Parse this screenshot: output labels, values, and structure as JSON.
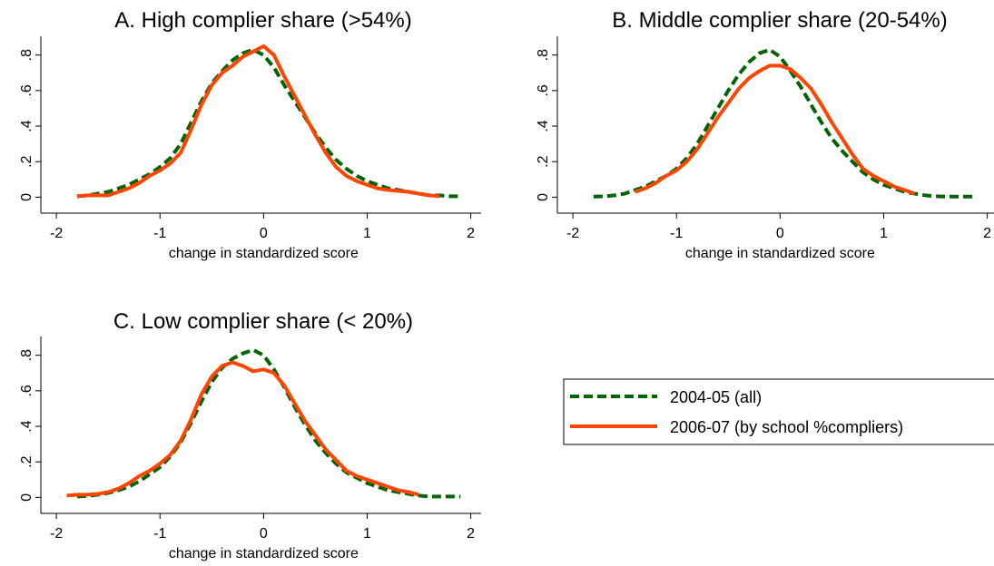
{
  "chart_data": [
    {
      "type": "line",
      "title": "A. High complier share (>54%)",
      "x_label": "change in standardized score",
      "xlim": [
        -2.15,
        2.1
      ],
      "ylim": [
        -0.09,
        0.88
      ],
      "xticks": [
        -2,
        -1,
        0,
        1,
        2
      ],
      "yticks": [
        0,
        {
          "value": 0.2,
          "label": ".2"
        },
        {
          "value": 0.4,
          "label": ".4"
        },
        {
          "value": 0.6,
          "label": ".6"
        },
        {
          "value": 0.8,
          "label": ".8"
        }
      ],
      "x": [
        -1.9,
        -1.8,
        -1.7,
        -1.6,
        -1.5,
        -1.4,
        -1.3,
        -1.2,
        -1.1,
        -1.0,
        -0.9,
        -0.8,
        -0.7,
        -0.6,
        -0.5,
        -0.4,
        -0.3,
        -0.2,
        -0.1,
        0,
        0.1,
        0.2,
        0.3,
        0.4,
        0.5,
        0.6,
        0.7,
        0.8,
        0.9,
        1.0,
        1.1,
        1.2,
        1.3,
        1.4,
        1.5,
        1.6,
        1.7,
        1.8,
        1.9
      ],
      "series": [
        {
          "name": "2004-05 (all)",
          "color": "#006400",
          "dashed": true,
          "values": [
            null,
            0.005,
            0.01,
            0.02,
            0.03,
            0.05,
            0.07,
            0.1,
            0.13,
            0.17,
            0.22,
            0.3,
            0.42,
            0.54,
            0.64,
            0.71,
            0.77,
            0.81,
            0.83,
            0.8,
            0.73,
            0.63,
            0.54,
            0.45,
            0.36,
            0.28,
            0.21,
            0.16,
            0.12,
            0.09,
            0.07,
            0.05,
            0.04,
            0.03,
            0.02,
            0.01,
            0.01,
            0.005,
            0.005
          ]
        },
        {
          "name": "2006-07 (by school %compliers)",
          "color": "#ff4500",
          "dashed": false,
          "values": [
            null,
            0.005,
            0.01,
            0.01,
            0.01,
            0.03,
            0.05,
            0.08,
            0.12,
            0.15,
            0.19,
            0.25,
            0.38,
            0.52,
            0.63,
            0.7,
            0.74,
            0.79,
            0.82,
            0.85,
            0.8,
            0.68,
            0.57,
            0.46,
            0.35,
            0.25,
            0.17,
            0.12,
            0.09,
            0.07,
            0.05,
            0.04,
            0.035,
            0.03,
            0.02,
            0.01,
            0.005,
            null,
            null
          ]
        }
      ]
    },
    {
      "type": "line",
      "title": "B. Middle complier share (20-54%)",
      "x_label": "change in standardized score",
      "xlim": [
        -2.15,
        2.1
      ],
      "ylim": [
        -0.09,
        0.88
      ],
      "xticks": [
        -2,
        -1,
        0,
        1,
        2
      ],
      "yticks": [
        0,
        {
          "value": 0.2,
          "label": ".2"
        },
        {
          "value": 0.4,
          "label": ".4"
        },
        {
          "value": 0.6,
          "label": ".6"
        },
        {
          "value": 0.8,
          "label": ".8"
        }
      ],
      "x": [
        -1.9,
        -1.8,
        -1.7,
        -1.6,
        -1.5,
        -1.4,
        -1.3,
        -1.2,
        -1.1,
        -1.0,
        -0.9,
        -0.8,
        -0.7,
        -0.6,
        -0.5,
        -0.4,
        -0.3,
        -0.2,
        -0.1,
        0,
        0.1,
        0.2,
        0.3,
        0.4,
        0.5,
        0.6,
        0.7,
        0.8,
        0.9,
        1.0,
        1.1,
        1.2,
        1.3,
        1.4,
        1.5,
        1.6,
        1.7,
        1.8,
        1.9
      ],
      "series": [
        {
          "color": "#006400",
          "dashed": true,
          "values": [
            null,
            0.003,
            0.005,
            0.01,
            0.02,
            0.04,
            0.06,
            0.09,
            0.12,
            0.16,
            0.22,
            0.3,
            0.4,
            0.5,
            0.6,
            0.69,
            0.76,
            0.81,
            0.83,
            0.79,
            0.71,
            0.62,
            0.52,
            0.42,
            0.33,
            0.26,
            0.2,
            0.14,
            0.1,
            0.07,
            0.05,
            0.03,
            0.02,
            0.01,
            0.005,
            0.003,
            0.003,
            0.003,
            0.003
          ]
        },
        {
          "color": "#ff4500",
          "dashed": false,
          "values": [
            null,
            null,
            null,
            null,
            null,
            0.03,
            0.05,
            0.08,
            0.12,
            0.15,
            0.2,
            0.27,
            0.36,
            0.45,
            0.53,
            0.61,
            0.67,
            0.71,
            0.74,
            0.74,
            0.72,
            0.67,
            0.61,
            0.52,
            0.42,
            0.33,
            0.24,
            0.16,
            0.12,
            0.09,
            0.06,
            0.04,
            0.02,
            null,
            null,
            null,
            null,
            null,
            null
          ]
        }
      ]
    },
    {
      "type": "line",
      "title": "C. Low complier share (< 20%)",
      "x_label": "change in standardized score",
      "xlim": [
        -2.15,
        2.1
      ],
      "ylim": [
        -0.09,
        0.88
      ],
      "xticks": [
        -2,
        -1,
        0,
        1,
        2
      ],
      "yticks": [
        0,
        {
          "value": 0.2,
          "label": ".2"
        },
        {
          "value": 0.4,
          "label": ".4"
        },
        {
          "value": 0.6,
          "label": ".6"
        },
        {
          "value": 0.8,
          "label": ".8"
        }
      ],
      "x": [
        -1.9,
        -1.8,
        -1.7,
        -1.6,
        -1.5,
        -1.4,
        -1.3,
        -1.2,
        -1.1,
        -1.0,
        -0.9,
        -0.8,
        -0.7,
        -0.6,
        -0.5,
        -0.4,
        -0.3,
        -0.2,
        -0.1,
        0,
        0.1,
        0.2,
        0.3,
        0.4,
        0.5,
        0.6,
        0.7,
        0.8,
        0.9,
        1.0,
        1.1,
        1.2,
        1.3,
        1.4,
        1.5,
        1.6,
        1.7,
        1.8,
        1.9
      ],
      "series": [
        {
          "color": "#006400",
          "dashed": true,
          "values": [
            null,
            0.005,
            0.008,
            0.015,
            0.025,
            0.04,
            0.06,
            0.09,
            0.13,
            0.17,
            0.23,
            0.31,
            0.42,
            0.54,
            0.65,
            0.73,
            0.78,
            0.81,
            0.83,
            0.8,
            0.72,
            0.62,
            0.51,
            0.41,
            0.32,
            0.25,
            0.19,
            0.14,
            0.11,
            0.08,
            0.06,
            0.04,
            0.03,
            0.02,
            0.01,
            0.005,
            0.005,
            0.005,
            0.005
          ]
        },
        {
          "color": "#ff4500",
          "dashed": false,
          "values": [
            0.01,
            0.015,
            0.015,
            0.02,
            0.03,
            0.05,
            0.08,
            0.12,
            0.15,
            0.19,
            0.24,
            0.32,
            0.44,
            0.58,
            0.68,
            0.74,
            0.76,
            0.74,
            0.71,
            0.72,
            0.7,
            0.63,
            0.53,
            0.43,
            0.35,
            0.27,
            0.21,
            0.15,
            0.12,
            0.1,
            0.08,
            0.06,
            0.04,
            0.03,
            0.015,
            null,
            null,
            null,
            null
          ]
        }
      ]
    }
  ]
}
